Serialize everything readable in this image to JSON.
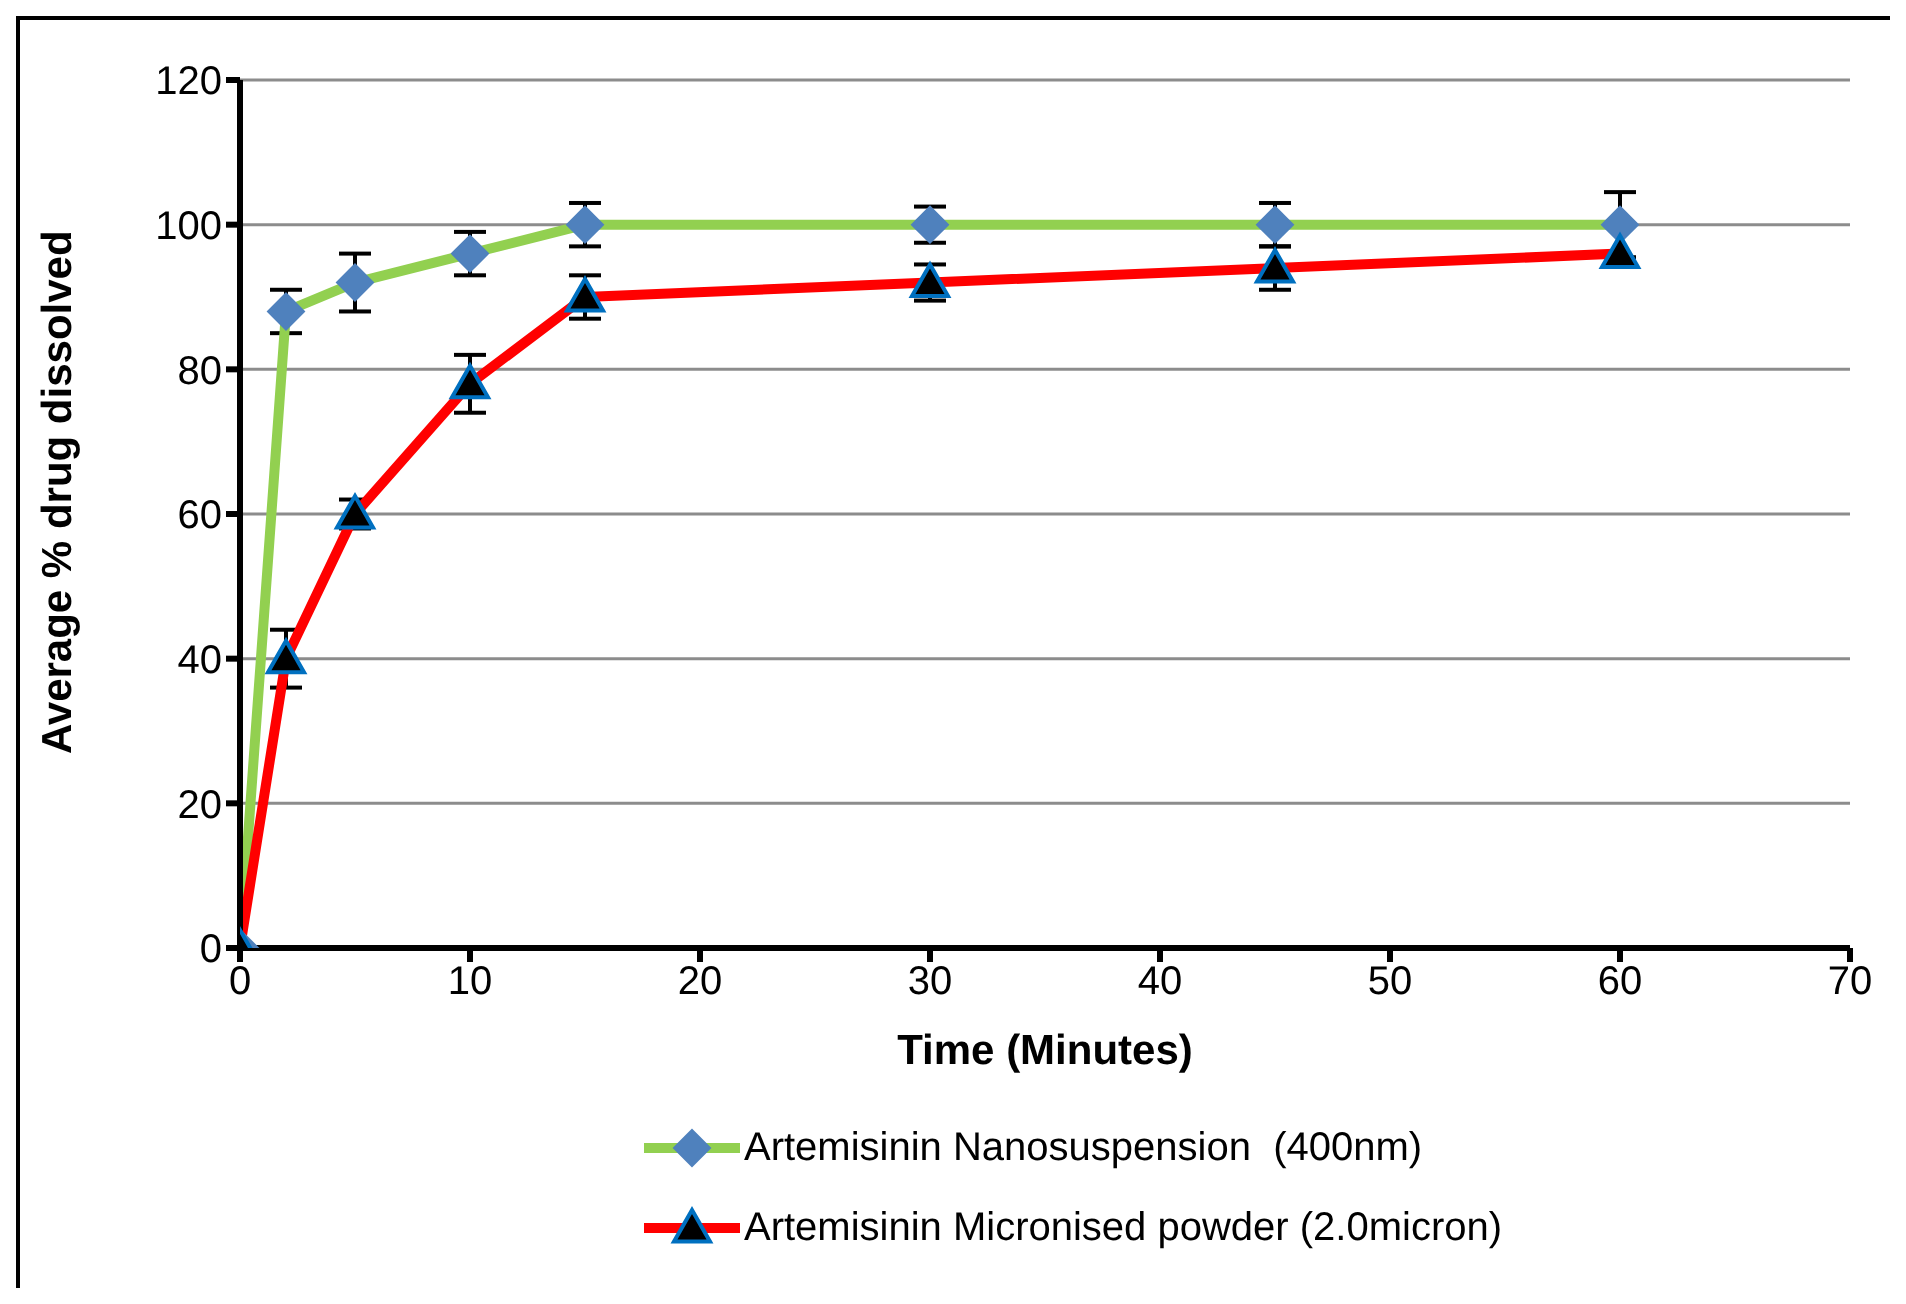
{
  "chart_data": {
    "type": "line",
    "xlabel": "Time (Minutes)",
    "ylabel": "Average % drug dissolved",
    "x": [
      0,
      2,
      5,
      10,
      15,
      30,
      45,
      60
    ],
    "series": [
      {
        "name": "Artemisinin Nanosuspension  (400nm)",
        "color": "#92d050",
        "marker": "diamond",
        "values": [
          0,
          88,
          92,
          96,
          100,
          100,
          100,
          100
        ],
        "errors": [
          null,
          3,
          4,
          3,
          3,
          2.5,
          3,
          4.5
        ]
      },
      {
        "name": "Artemisinin Micronised powder (2.0micron)",
        "color": "#ff0000",
        "marker": "triangle",
        "values": [
          0,
          40,
          60,
          78,
          90,
          92,
          94,
          96
        ],
        "errors": [
          null,
          4,
          2,
          4,
          3,
          2.5,
          3,
          null
        ]
      }
    ],
    "xlim": [
      0,
      70
    ],
    "xticks": [
      0,
      10,
      20,
      30,
      40,
      50,
      60,
      70
    ],
    "ylim": [
      0,
      120
    ],
    "yticks": [
      0,
      20,
      40,
      60,
      80,
      100,
      120
    ],
    "grid": "y",
    "legend": "bottom",
    "line_style": "solid"
  }
}
